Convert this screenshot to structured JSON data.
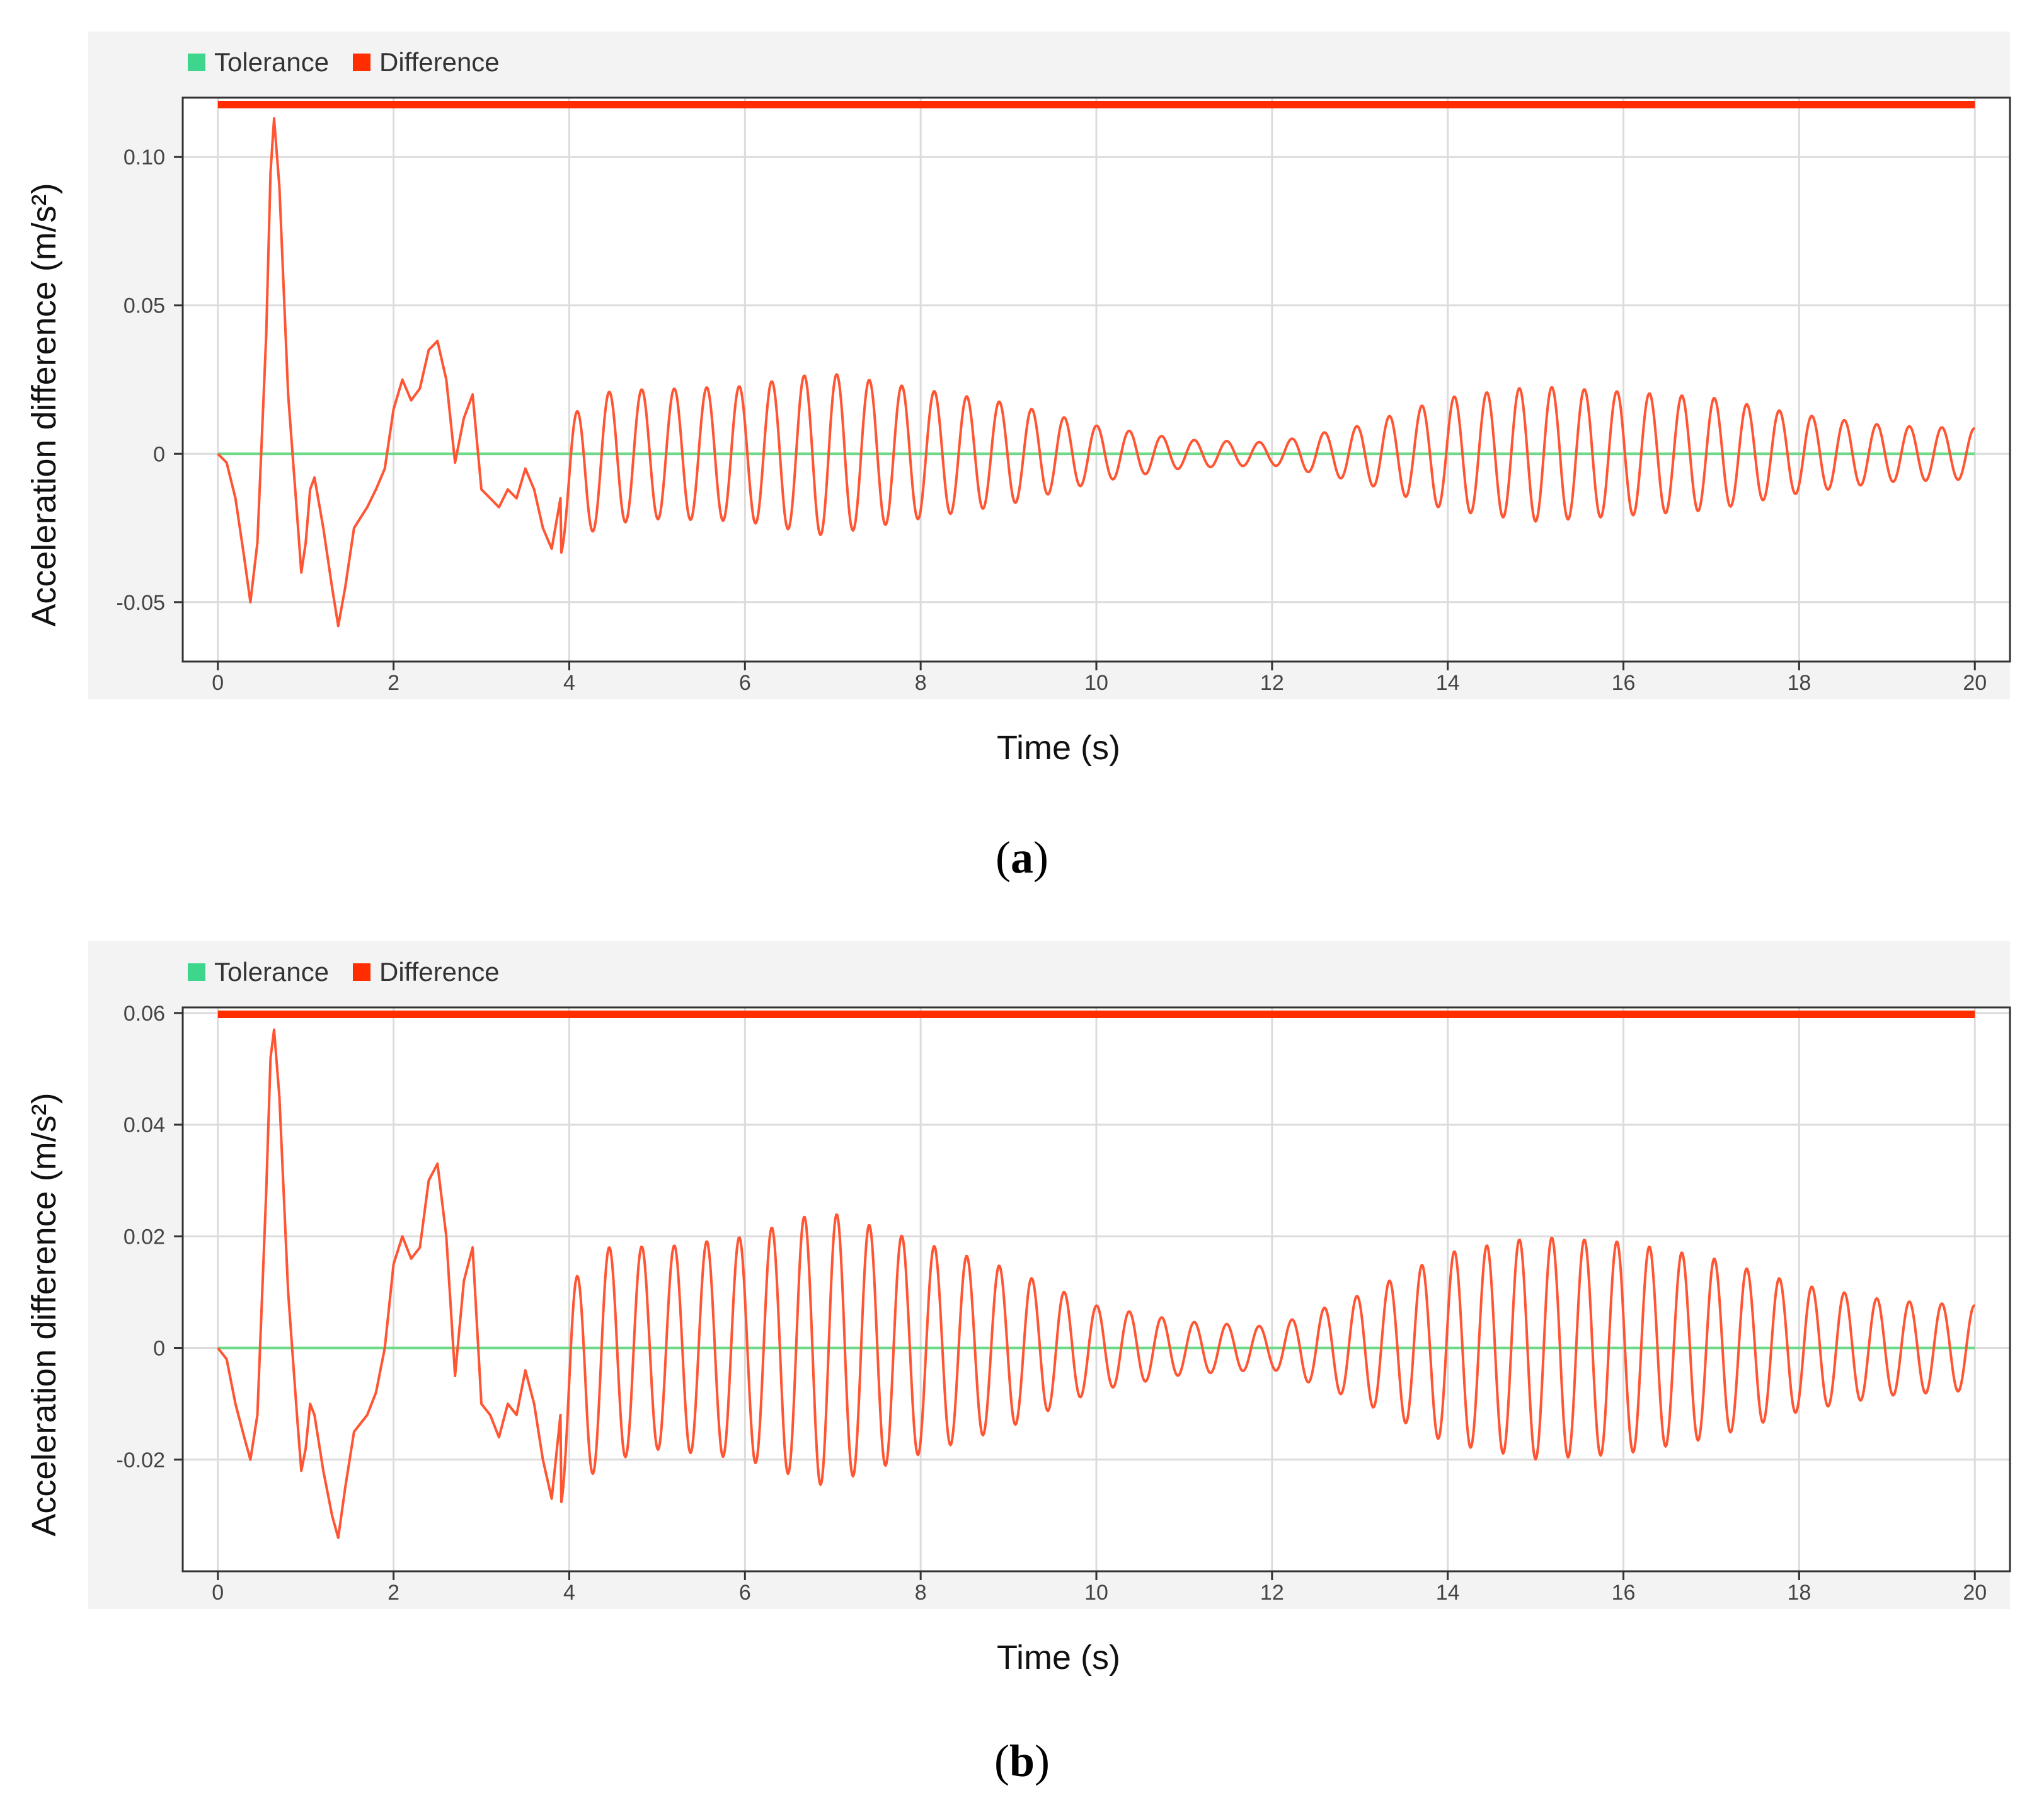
{
  "chart_data": [
    {
      "type": "line",
      "panel_label": "a",
      "xlabel": "Time (s)",
      "ylabel": "Acceleration difference (m/s²)",
      "xlim": [
        -0.4,
        20.4
      ],
      "ylim": [
        -0.07,
        0.12
      ],
      "x_ticks": [
        0,
        2,
        4,
        6,
        8,
        10,
        12,
        14,
        16,
        18,
        20
      ],
      "x_tick_labels": [
        "0",
        "2",
        "4",
        "6",
        "8",
        "10",
        "12",
        "14",
        "16",
        "18",
        "20"
      ],
      "y_ticks": [
        -0.05,
        0,
        0.05,
        0.1
      ],
      "y_tick_labels": [
        "-0.05",
        "0",
        "0.05",
        "0.10"
      ],
      "legend": [
        {
          "name": "Tolerance",
          "color": "#3dd68c"
        },
        {
          "name": "Difference",
          "color": "#ff2d00"
        }
      ],
      "series": [
        {
          "name": "Tolerance",
          "color": "#6fd98a",
          "x": [
            0,
            20
          ],
          "y": [
            0,
            0
          ]
        },
        {
          "name": "Difference",
          "color": "#ff5533",
          "x": [
            0,
            0.1,
            0.2,
            0.3,
            0.37,
            0.45,
            0.55,
            0.6,
            0.64,
            0.7,
            0.8,
            0.9,
            0.95,
            1.0,
            1.05,
            1.1,
            1.2,
            1.3,
            1.37,
            1.45,
            1.55,
            1.7,
            1.8,
            1.9,
            2.0,
            2.1,
            2.2,
            2.3,
            2.4,
            2.5,
            2.6,
            2.7,
            2.8,
            2.9,
            3.0,
            3.1,
            3.2,
            3.3,
            3.4,
            3.5,
            3.6,
            3.7,
            3.8,
            3.9
          ],
          "y": [
            0,
            -0.003,
            -0.015,
            -0.035,
            -0.05,
            -0.03,
            0.04,
            0.095,
            0.113,
            0.09,
            0.02,
            -0.02,
            -0.04,
            -0.03,
            -0.012,
            -0.008,
            -0.025,
            -0.045,
            -0.058,
            -0.045,
            -0.025,
            -0.018,
            -0.012,
            -0.005,
            0.015,
            0.025,
            0.018,
            0.022,
            0.035,
            0.038,
            0.025,
            -0.003,
            0.012,
            0.02,
            -0.012,
            -0.015,
            -0.018,
            -0.012,
            -0.015,
            -0.005,
            -0.012,
            -0.025,
            -0.032,
            -0.015
          ],
          "oscillation": {
            "start": 3.9,
            "end": 20.0,
            "period": 0.37,
            "envelope_t": [
              3.9,
              4.2,
              5.0,
              6.0,
              6.9,
              8.0,
              9.0,
              10.0,
              11.0,
              12.0,
              13.0,
              14.0,
              15.0,
              16.0,
              17.0,
              18.0,
              19.0,
              20.0
            ],
            "envelope_a": [
              0.02,
              0.024,
              0.023,
              0.024,
              0.029,
              0.023,
              0.018,
              0.01,
              0.005,
              0.004,
              0.01,
              0.02,
              0.024,
              0.022,
              0.02,
              0.014,
              0.01,
              0.009
            ]
          }
        }
      ]
    },
    {
      "type": "line",
      "panel_label": "b",
      "xlabel": "Time (s)",
      "ylabel": "Acceleration difference (m/s²)",
      "xlim": [
        -0.4,
        20.4
      ],
      "ylim": [
        -0.04,
        0.061
      ],
      "x_ticks": [
        0,
        2,
        4,
        6,
        8,
        10,
        12,
        14,
        16,
        18,
        20
      ],
      "x_tick_labels": [
        "0",
        "2",
        "4",
        "6",
        "8",
        "10",
        "12",
        "14",
        "16",
        "18",
        "20"
      ],
      "y_ticks": [
        -0.02,
        0,
        0.02,
        0.04,
        0.06
      ],
      "y_tick_labels": [
        "-0.02",
        "0",
        "0.02",
        "0.04",
        "0.06"
      ],
      "legend": [
        {
          "name": "Tolerance",
          "color": "#3dd68c"
        },
        {
          "name": "Difference",
          "color": "#ff2d00"
        }
      ],
      "series": [
        {
          "name": "Tolerance",
          "color": "#6fd98a",
          "x": [
            0,
            20
          ],
          "y": [
            0,
            0
          ]
        },
        {
          "name": "Difference",
          "color": "#ff5533",
          "x": [
            0,
            0.1,
            0.2,
            0.3,
            0.37,
            0.45,
            0.55,
            0.6,
            0.64,
            0.7,
            0.8,
            0.9,
            0.95,
            1.0,
            1.05,
            1.1,
            1.2,
            1.3,
            1.37,
            1.45,
            1.55,
            1.7,
            1.8,
            1.9,
            2.0,
            2.1,
            2.2,
            2.3,
            2.4,
            2.5,
            2.6,
            2.7,
            2.8,
            2.9,
            3.0,
            3.1,
            3.2,
            3.3,
            3.4,
            3.5,
            3.6,
            3.7,
            3.8,
            3.9
          ],
          "y": [
            0,
            -0.002,
            -0.01,
            -0.016,
            -0.02,
            -0.012,
            0.028,
            0.052,
            0.057,
            0.045,
            0.01,
            -0.012,
            -0.022,
            -0.018,
            -0.01,
            -0.012,
            -0.022,
            -0.03,
            -0.034,
            -0.025,
            -0.015,
            -0.012,
            -0.008,
            0.0,
            0.015,
            0.02,
            0.016,
            0.018,
            0.03,
            0.033,
            0.02,
            -0.005,
            0.012,
            0.018,
            -0.01,
            -0.012,
            -0.016,
            -0.01,
            -0.012,
            -0.004,
            -0.01,
            -0.02,
            -0.027,
            -0.012
          ],
          "oscillation": {
            "start": 3.9,
            "end": 20.0,
            "period": 0.37,
            "envelope_t": [
              3.9,
              4.2,
              5.0,
              6.0,
              6.9,
              8.0,
              9.0,
              10.0,
              11.0,
              12.0,
              13.0,
              14.0,
              15.0,
              16.0,
              17.0,
              18.0,
              19.0,
              20.0
            ],
            "envelope_a": [
              0.017,
              0.021,
              0.019,
              0.021,
              0.026,
              0.02,
              0.015,
              0.008,
              0.005,
              0.004,
              0.01,
              0.018,
              0.021,
              0.02,
              0.017,
              0.012,
              0.009,
              0.008
            ]
          }
        }
      ]
    }
  ]
}
